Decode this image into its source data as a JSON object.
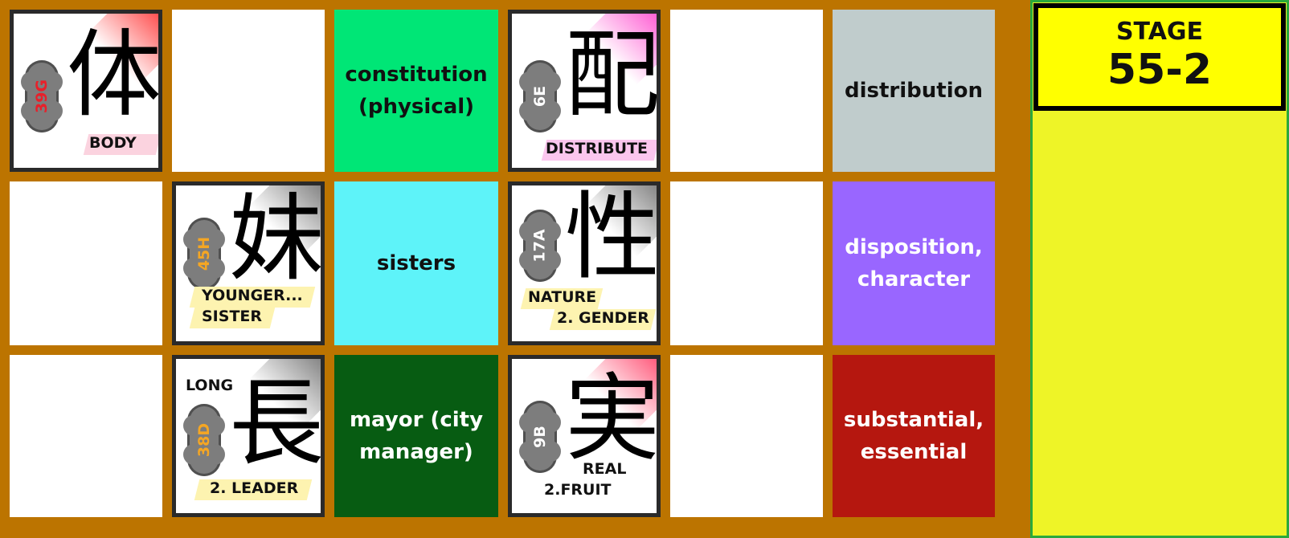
{
  "board": {
    "border_color": "#bc7400",
    "cards": [
      {
        "kanji": "体",
        "code": "39G",
        "code_color": "#e8202a",
        "corner_color": "#ff1a1a",
        "meaning": "BODY",
        "meaning2": ""
      },
      {
        "kanji": "配",
        "code": "6E",
        "code_color": "#ffffff",
        "corner_color": "#ff2fc7",
        "meaning": "DISTRIBUTE",
        "meaning2": ""
      },
      {
        "kanji": "妹",
        "code": "45H",
        "code_color": "#f5a623",
        "corner_color": "#606060",
        "meaning": "YOUNGER...",
        "meaning2": "SISTER"
      },
      {
        "kanji": "性",
        "code": "17A",
        "code_color": "#ffffff",
        "corner_color": "#606060",
        "meaning": "NATURE",
        "meaning2": "2. GENDER"
      },
      {
        "kanji": "長",
        "code": "38D",
        "code_color": "#f5a623",
        "corner_color": "#606060",
        "meaning": "LONG",
        "meaning2": "2. LEADER"
      },
      {
        "kanji": "実",
        "code": "9B",
        "code_color": "#ffffff",
        "corner_color": "#ff2a55",
        "meaning": "REAL",
        "meaning2": "2.FRUIT"
      }
    ],
    "phrases": [
      {
        "text": "constitution (physical)",
        "color": "#00e676"
      },
      {
        "text": "distribution",
        "color": "#c0cccc"
      },
      {
        "text": "sisters",
        "color": "#5ef3f9"
      },
      {
        "text": "disposition, character",
        "color": "#9966ff"
      },
      {
        "text": "mayor (city manager)",
        "color": "#075c12"
      },
      {
        "text": "substantial, essential",
        "color": "#b5170f"
      }
    ]
  },
  "stage": {
    "label": "STAGE",
    "number": "55-2",
    "box_color": "#ffff00",
    "panel_color": "#eef427"
  }
}
